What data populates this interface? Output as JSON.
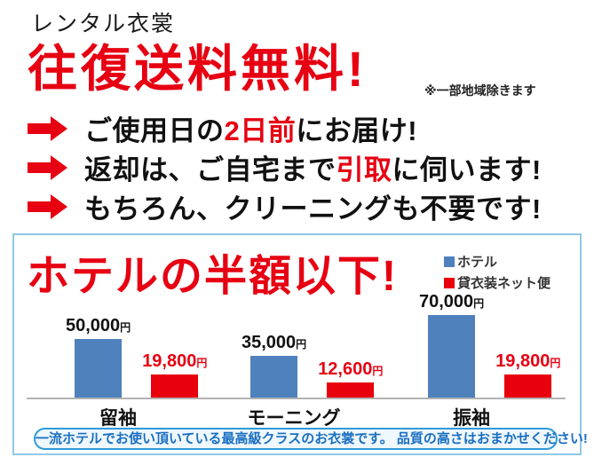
{
  "header": {
    "brand": "レンタル衣裳",
    "headline": "往復送料無料!",
    "note": "※一部地域除きます"
  },
  "bullets": [
    {
      "pre": "ご使用日の",
      "em": "2日前",
      "post": "にお届け!"
    },
    {
      "pre": "返却は、ご自宅まで",
      "em": "引取",
      "post": "に伺います!"
    },
    {
      "pre": "もちろん、クリーニングも不要です!",
      "em": "",
      "post": ""
    }
  ],
  "chart": {
    "title": "ホテルの半額以下!",
    "footer": "一流ホテルでお使い頂いている最高級クラスのお衣裳です。 品質の高さはおまかせください!"
  },
  "chart_data": {
    "type": "bar",
    "categories": [
      "留袖",
      "モーニング",
      "振袖"
    ],
    "series": [
      {
        "name": "ホテル",
        "color": "#4f81bd",
        "values": [
          50000,
          35000,
          70000
        ],
        "labels": [
          "50,000",
          "35,000",
          "70,000"
        ]
      },
      {
        "name": "貸衣装ネット便",
        "color": "#e8000d",
        "values": [
          19800,
          12600,
          19800
        ],
        "labels": [
          "19,800",
          "12,600",
          "19,800"
        ]
      }
    ],
    "unit": "円",
    "ylim": [
      0,
      70000
    ],
    "grid": false,
    "legend_position": "top-right"
  },
  "colors": {
    "accent_red": "#e60012",
    "bar_blue": "#4f81bd",
    "bar_red": "#e8000d",
    "box_border": "#8fc8e8",
    "pill_border": "#2f9bd8",
    "pill_text": "#1a6ec0",
    "axis": "#b3b3b3"
  }
}
